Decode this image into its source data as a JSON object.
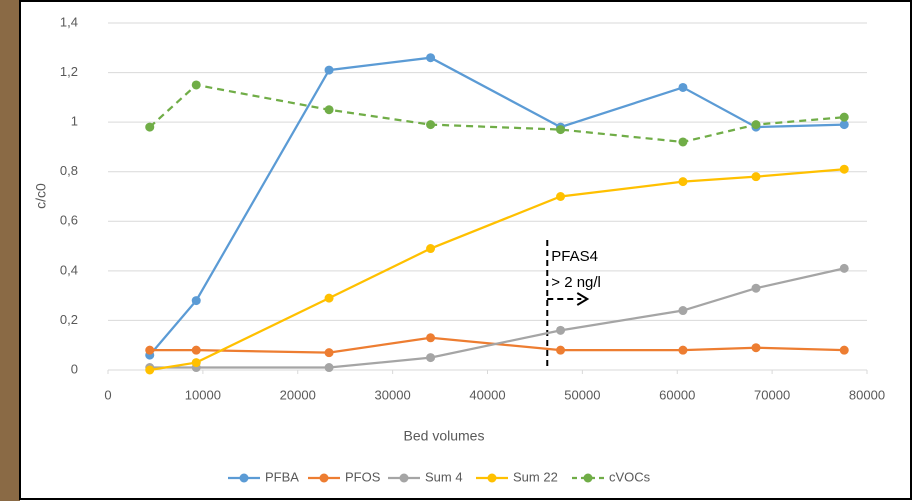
{
  "chart_data": {
    "type": "line",
    "x_label": "Bed volumes",
    "y_label": "c/c0",
    "x": [
      4400,
      9300,
      23300,
      34000,
      47700,
      60600,
      68300,
      77600
    ],
    "series": [
      {
        "name": "PFBA",
        "color": "#5b9bd5",
        "dashed": false,
        "values": [
          0.06,
          0.28,
          1.21,
          1.26,
          0.98,
          1.14,
          0.98,
          0.99
        ]
      },
      {
        "name": "PFOS",
        "color": "#ed7d31",
        "dashed": false,
        "values": [
          0.08,
          0.08,
          0.07,
          0.13,
          0.08,
          0.08,
          0.09,
          0.08
        ]
      },
      {
        "name": "Sum 4",
        "color": "#a5a5a5",
        "dashed": false,
        "values": [
          0.01,
          0.01,
          0.01,
          0.05,
          0.16,
          0.24,
          0.33,
          0.41
        ]
      },
      {
        "name": "Sum 22",
        "color": "#ffc000",
        "dashed": false,
        "values": [
          0.0,
          0.03,
          0.29,
          0.49,
          0.7,
          0.76,
          0.78,
          0.81
        ]
      },
      {
        "name": "cVOCs",
        "color": "#70ad47",
        "dashed": true,
        "values": [
          0.98,
          1.15,
          1.05,
          0.99,
          0.97,
          0.92,
          0.99,
          1.02
        ]
      }
    ],
    "xlim": [
      0,
      80000
    ],
    "xticks": [
      0,
      10000,
      20000,
      30000,
      40000,
      50000,
      60000,
      70000,
      80000
    ],
    "ylim": [
      0,
      1.4
    ],
    "yticks": [
      0,
      {
        "value": 0.2,
        "label": "0,2"
      },
      {
        "value": 0.4,
        "label": "0,4"
      },
      {
        "value": 0.6,
        "label": "0,6"
      },
      {
        "value": 0.8,
        "label": "0,8"
      },
      1,
      {
        "value": 1.2,
        "label": "1,2"
      },
      {
        "value": 1.4,
        "label": "1,4"
      }
    ],
    "grid": true,
    "legend": "bottom",
    "annotation": {
      "lines": [
        "PFAS4",
        "> 2 ng/l"
      ],
      "x": 46300
    }
  }
}
